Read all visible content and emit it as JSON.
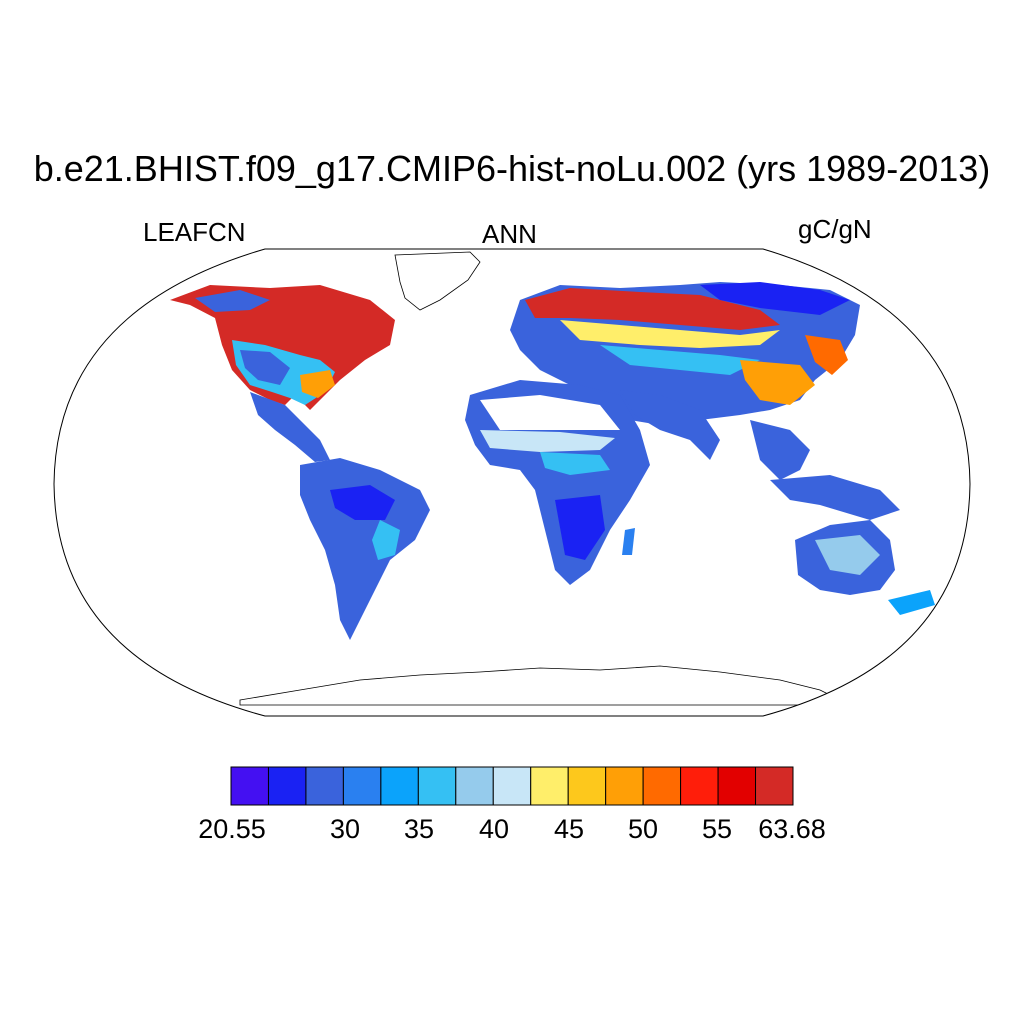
{
  "title": "b.e21.BHIST.f09_g17.CMIP6-hist-noLu.002 (yrs 1989-2013)",
  "left_label": "LEAFCN",
  "center_label": "ANN",
  "right_label": "gC/gN",
  "colorbar": {
    "colors": [
      "#4410f2",
      "#1a22f3",
      "#3a63dc",
      "#2a80f0",
      "#0ba3fb",
      "#35c0f3",
      "#95cbec",
      "#c8e6f7",
      "#ffee6a",
      "#fdc81c",
      "#ff9f06",
      "#ff6a00",
      "#ff1e0a",
      "#e20000",
      "#d42a26"
    ],
    "tick_labels": [
      "20.55",
      "30",
      "35",
      "40",
      "45",
      "50",
      "55",
      "63.68"
    ]
  }
}
